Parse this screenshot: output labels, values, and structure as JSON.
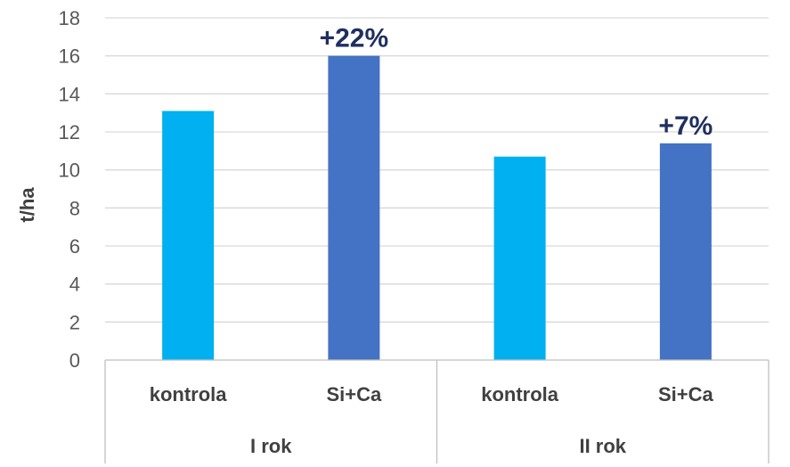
{
  "chart_data": {
    "type": "bar",
    "ylabel": "t/ha",
    "ylim": [
      0,
      18
    ],
    "yticks": [
      0,
      2,
      4,
      6,
      8,
      10,
      12,
      14,
      16,
      18
    ],
    "grid": true,
    "groups": [
      {
        "label": "I rok",
        "bars": [
          {
            "category": "kontrola",
            "value": 13.1,
            "color": "#00b0f0",
            "annotation": ""
          },
          {
            "category": "Si+Ca",
            "value": 16.0,
            "color": "#4472c4",
            "annotation": "+22%"
          }
        ]
      },
      {
        "label": "II rok",
        "bars": [
          {
            "category": "kontrola",
            "value": 10.7,
            "color": "#00b0f0",
            "annotation": ""
          },
          {
            "category": "Si+Ca",
            "value": 11.4,
            "color": "#4472c4",
            "annotation": "+7%"
          }
        ]
      }
    ]
  }
}
